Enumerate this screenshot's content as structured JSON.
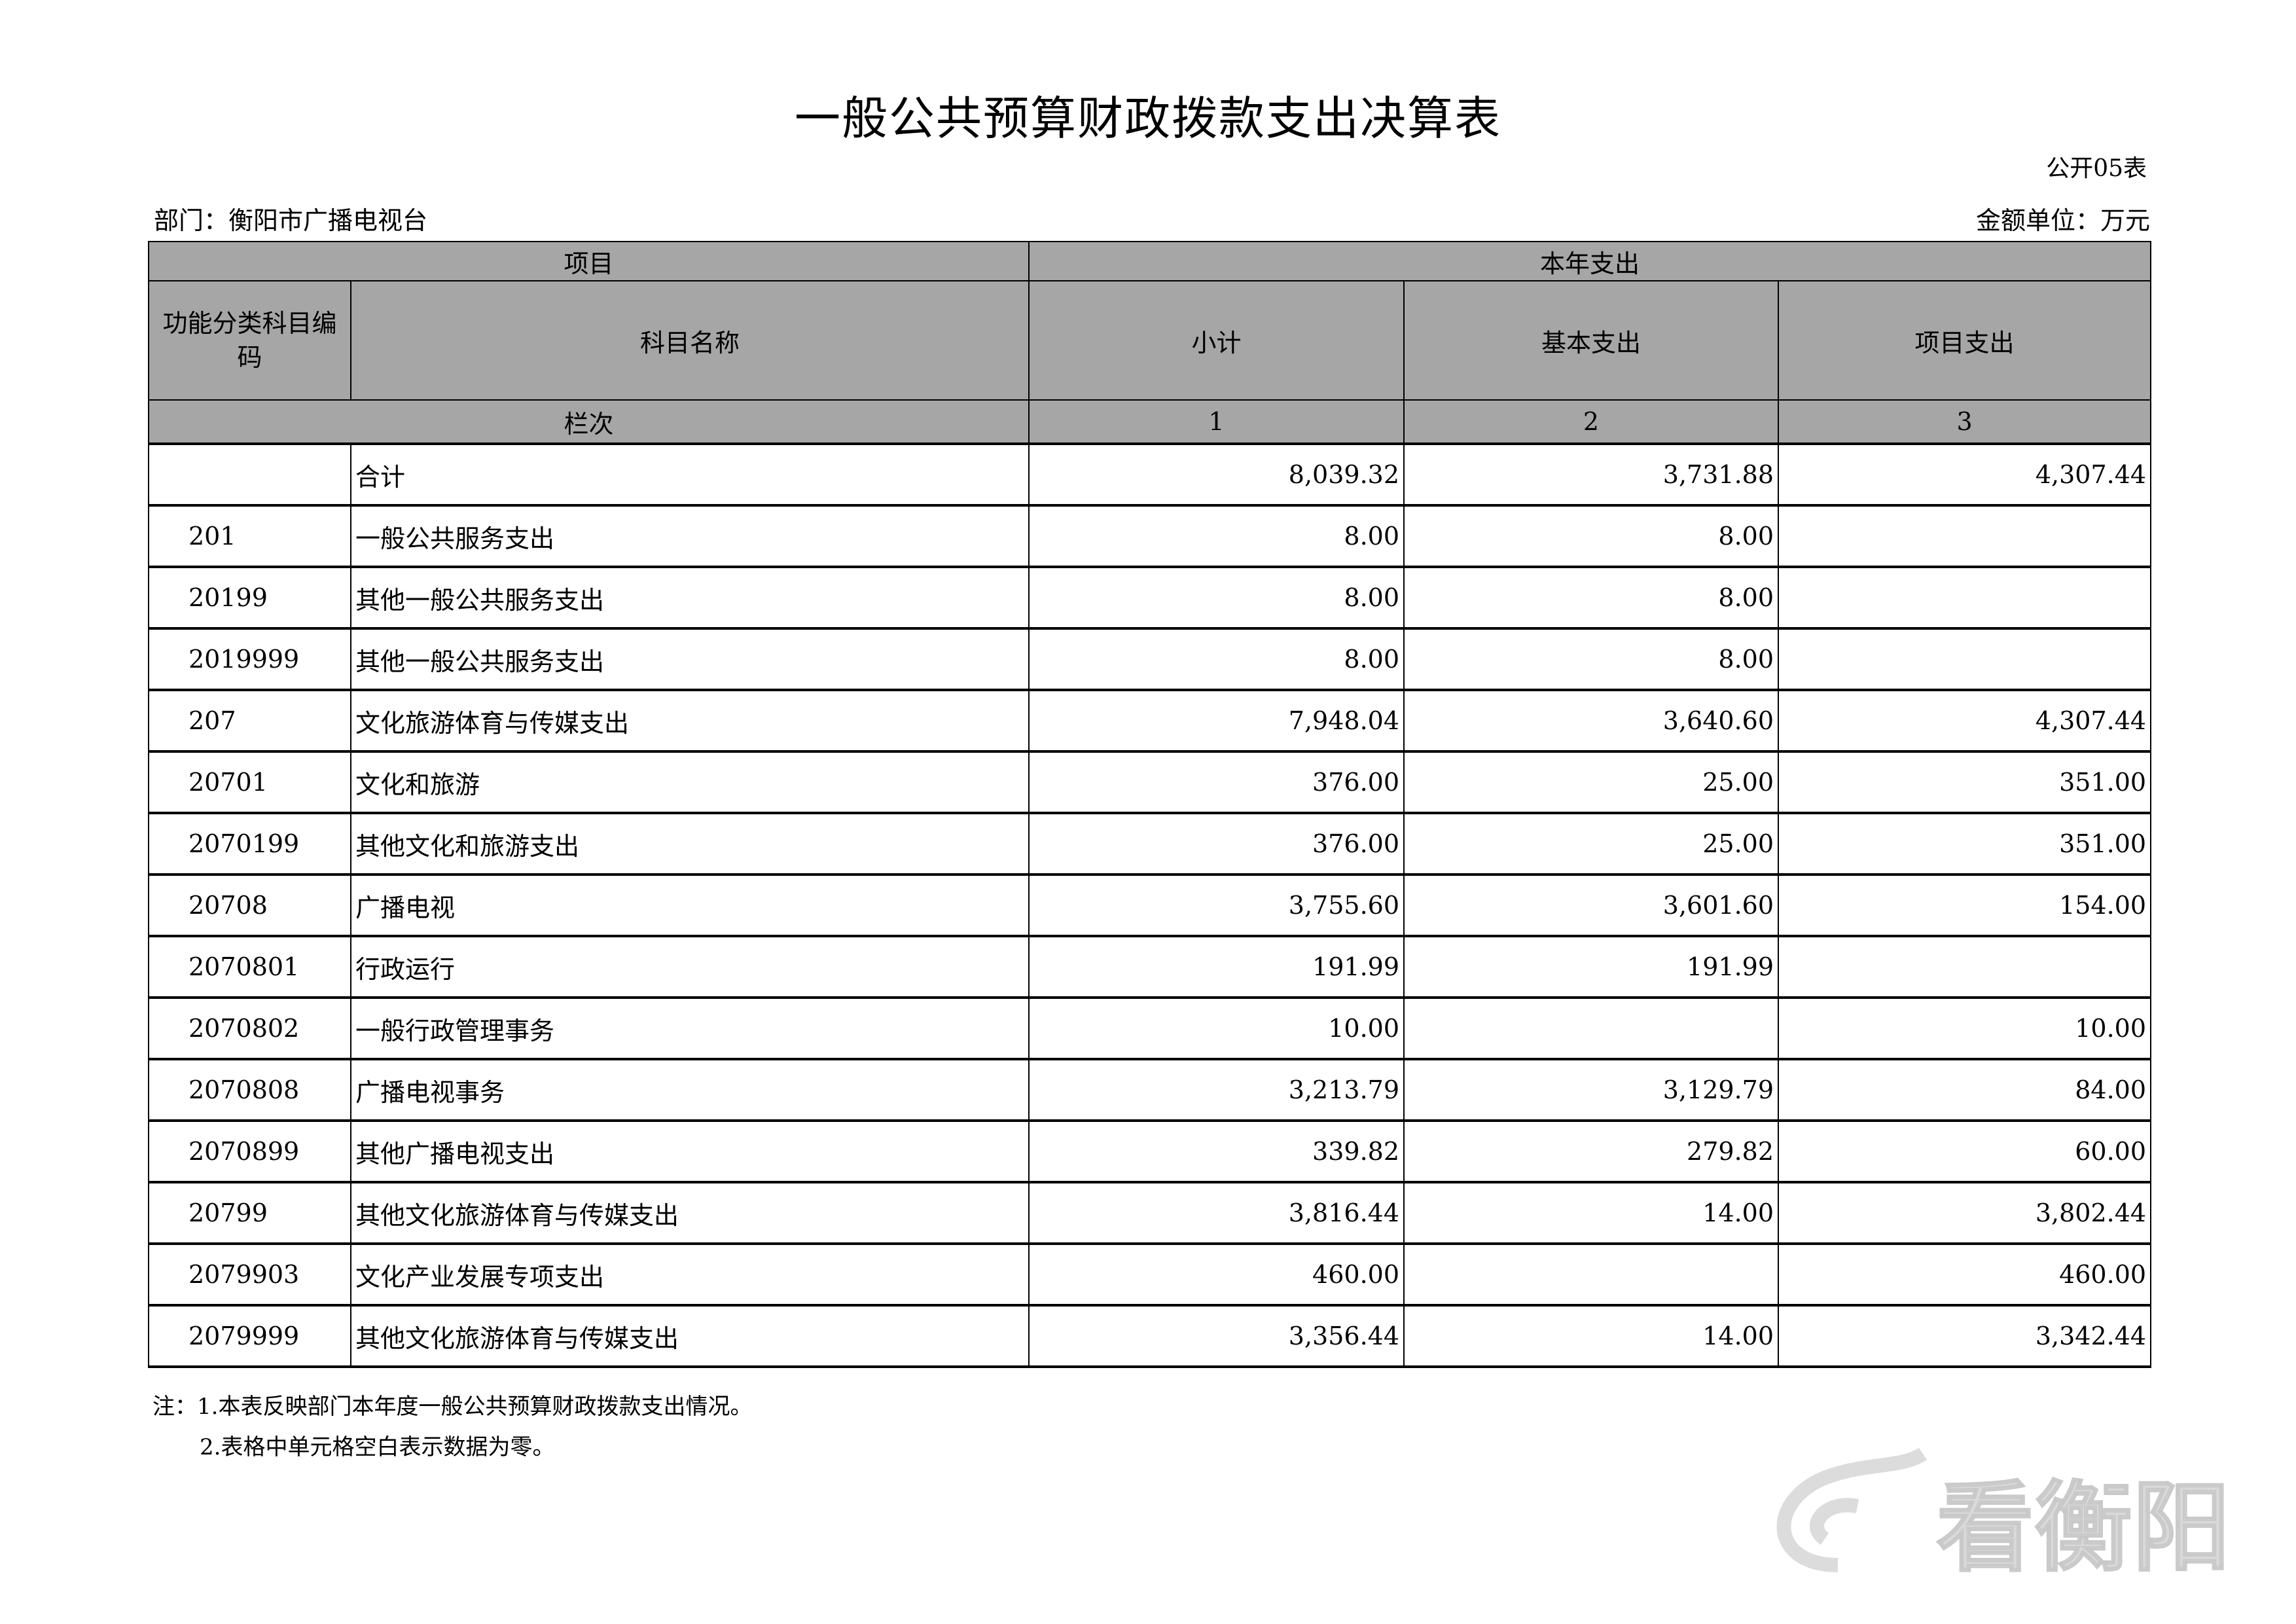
{
  "title": "一般公共预算财政拨款支出决算表",
  "form_no": "公开05表",
  "department": "部门：衡阳市广播电视台",
  "unit": "金额单位：万元",
  "header": {
    "project": "项目",
    "current_year_expense": "本年支出",
    "code": "功能分类科目编码",
    "name": "科目名称",
    "subtotal": "小计",
    "basic": "基本支出",
    "project_exp": "项目支出",
    "column_index": "栏次",
    "col1": "1",
    "col2": "2",
    "col3": "3"
  },
  "rows": [
    {
      "code": "",
      "name": "合计",
      "subtotal": "8,039.32",
      "basic": "3,731.88",
      "project": "4,307.44"
    },
    {
      "code": "201",
      "name": "一般公共服务支出",
      "subtotal": "8.00",
      "basic": "8.00",
      "project": ""
    },
    {
      "code": "20199",
      "name": "其他一般公共服务支出",
      "subtotal": "8.00",
      "basic": "8.00",
      "project": ""
    },
    {
      "code": "2019999",
      "name": "其他一般公共服务支出",
      "subtotal": "8.00",
      "basic": "8.00",
      "project": ""
    },
    {
      "code": "207",
      "name": "文化旅游体育与传媒支出",
      "subtotal": "7,948.04",
      "basic": "3,640.60",
      "project": "4,307.44"
    },
    {
      "code": "20701",
      "name": "文化和旅游",
      "subtotal": "376.00",
      "basic": "25.00",
      "project": "351.00"
    },
    {
      "code": "2070199",
      "name": "其他文化和旅游支出",
      "subtotal": "376.00",
      "basic": "25.00",
      "project": "351.00"
    },
    {
      "code": "20708",
      "name": "广播电视",
      "subtotal": "3,755.60",
      "basic": "3,601.60",
      "project": "154.00"
    },
    {
      "code": "2070801",
      "name": "行政运行",
      "subtotal": "191.99",
      "basic": "191.99",
      "project": ""
    },
    {
      "code": "2070802",
      "name": "一般行政管理事务",
      "subtotal": "10.00",
      "basic": "",
      "project": "10.00"
    },
    {
      "code": "2070808",
      "name": "广播电视事务",
      "subtotal": "3,213.79",
      "basic": "3,129.79",
      "project": "84.00"
    },
    {
      "code": "2070899",
      "name": "其他广播电视支出",
      "subtotal": "339.82",
      "basic": "279.82",
      "project": "60.00"
    },
    {
      "code": "20799",
      "name": "其他文化旅游体育与传媒支出",
      "subtotal": "3,816.44",
      "basic": "14.00",
      "project": "3,802.44"
    },
    {
      "code": "2079903",
      "name": "文化产业发展专项支出",
      "subtotal": "460.00",
      "basic": "",
      "project": "460.00"
    },
    {
      "code": "2079999",
      "name": "其他文化旅游体育与传媒支出",
      "subtotal": "3,356.44",
      "basic": "14.00",
      "project": "3,342.44"
    }
  ],
  "notes": [
    "注：1.本表反映部门本年度一般公共预算财政拨款支出情况。",
    "2.表格中单元格空白表示数据为零。"
  ],
  "watermark": "看衡阳",
  "colors": {
    "header_bg": "#a6a6a6",
    "watermark": "#d9d9d9"
  }
}
